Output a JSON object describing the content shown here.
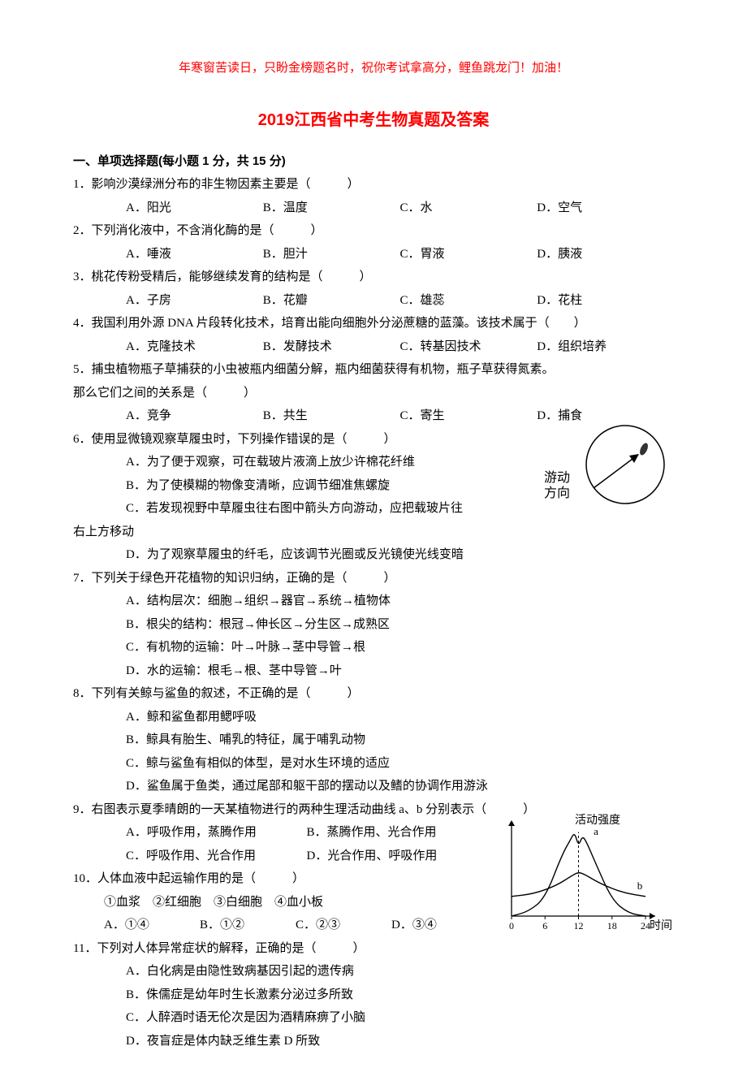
{
  "banner": "年寒窗苦读日，只盼金榜题名时，祝你考试拿高分，鲤鱼跳龙门！加油！",
  "title_year": "2019",
  "title_text": "江西省中考生物真题及答案",
  "section1": "一、单项选择题(每小题 1 分，共 15 分)",
  "q1": {
    "stem": "1．影响沙漠绿洲分布的非生物因素主要是（　　　）",
    "A": "A．阳光",
    "B": "B．温度",
    "C": "C．水",
    "D": "D．空气"
  },
  "q2": {
    "stem": "2．下列消化液中，不含消化酶的是（　　　）",
    "A": "A．唾液",
    "B": "B．胆汁",
    "C": "C．胃液",
    "D": "D．胰液"
  },
  "q3": {
    "stem": "3．桃花传粉受精后，能够继续发育的结构是（　　　）",
    "A": "A．子房",
    "B": "B．花瓣",
    "C": "C．雄蕊",
    "D": "D．花柱"
  },
  "q4": {
    "stem": "4．我国利用外源 DNA 片段转化技术，培育出能向细胞外分泌蔗糖的蓝藻。该技术属于（　　）",
    "A": "A．克隆技术",
    "B": "B．发酵技术",
    "C": "C．转基因技术",
    "D": "D．组织培养"
  },
  "q5": {
    "stem": "5．捕虫植物瓶子草捕获的小虫被瓶内细菌分解，瓶内细菌获得有机物，瓶子草获得氮素。",
    "cont": "那么它们之间的关系是（　　　）",
    "A": "A．竞争",
    "B": "B．共生",
    "C": "C．寄生",
    "D": "D．捕食"
  },
  "q6": {
    "stem": "6．使用显微镜观察草履虫时，下列操作错误的是（　　　）",
    "A": "A．为了便于观察，可在载玻片液滴上放少许棉花纤维",
    "B": "B．为了使模糊的物像变清晰，应调节细准焦螺旋",
    "C": "C．若发现视野中草履虫往右图中箭头方向游动，应把载玻片往",
    "Ccont": "右上方移动",
    "D": "D．为了观察草履虫的纤毛，应该调节光圈或反光镜使光线变暗",
    "figLabel1": "游动",
    "figLabel2": "方向"
  },
  "q7": {
    "stem": "7．下列关于绿色开花植物的知识归纳，正确的是（　　　）",
    "A": "A．结构层次：细胞→组织→器官→系统→植物体",
    "B": "B．根尖的结构：根冠→伸长区→分生区→成熟区",
    "C": "C．有机物的运输：叶→叶脉→茎中导管→根",
    "D": "D．水的运输：根毛→根、茎中导管→叶"
  },
  "q8": {
    "stem": "8．下列有关鲸与鲨鱼的叙述，不正确的是（　　　）",
    "A": "A．鲸和鲨鱼都用鳃呼吸",
    "B": "B．鲸具有胎生、哺乳的特征，属于哺乳动物",
    "C": "C．鲸与鲨鱼有相似的体型，是对水生环境的适应",
    "D": "D．鲨鱼属于鱼类，通过尾部和躯干部的摆动以及鳍的协调作用游泳"
  },
  "q9": {
    "stem": "9．右图表示夏季晴朗的一天某植物进行的两种生理活动曲线 a、b 分别表示（　　　）",
    "A": "A．呼吸作用，蒸腾作用",
    "B": "B．蒸腾作用、光合作用",
    "C": "C．呼吸作用、光合作用",
    "D": "D．光合作用、呼吸作用",
    "ylabel": "活动强度",
    "xlabel": "时间",
    "a": "a",
    "b": "b",
    "ticks": [
      "0",
      "6",
      "12",
      "18",
      "24"
    ],
    "chart": {
      "type": "line",
      "xlim": [
        0,
        24
      ],
      "ylim": [
        0,
        10
      ],
      "curve_a": [
        [
          0,
          0
        ],
        [
          3,
          0.5
        ],
        [
          6,
          2
        ],
        [
          9,
          6.8
        ],
        [
          10.5,
          8.5
        ],
        [
          11.3,
          9.4
        ],
        [
          12,
          7.8
        ],
        [
          12.7,
          9.0
        ],
        [
          13.5,
          8.2
        ],
        [
          15,
          6
        ],
        [
          18,
          1.8
        ],
        [
          21,
          0.3
        ],
        [
          24,
          0
        ]
      ],
      "curve_b": [
        [
          0,
          2.2
        ],
        [
          4,
          2.5
        ],
        [
          8,
          3.4
        ],
        [
          11,
          4.6
        ],
        [
          12,
          4.9
        ],
        [
          13,
          4.7
        ],
        [
          16,
          3.6
        ],
        [
          20,
          2.6
        ],
        [
          24,
          2.2
        ]
      ],
      "line_color": "#000000",
      "line_width": 1.4,
      "axis_color": "#000000",
      "dash_color": "#000000",
      "background_color": "#ffffff"
    }
  },
  "q10": {
    "stem": "10．人体血液中起运输作用的是（　　　）",
    "items": "①血浆　②红细胞　③白细胞　④血小板",
    "A": "A．①④",
    "B": "B．①②",
    "C": "C．②③",
    "D": "D．③④"
  },
  "q11": {
    "stem": "11．下列对人体异常症状的解释，正确的是（　　　）",
    "A": "A．白化病是由隐性致病基因引起的遗传病",
    "B": "B．侏儒症是幼年时生长激素分泌过多所致",
    "C": "C．人醉酒时语无伦次是因为酒精麻痹了小脑",
    "D": "D．夜盲症是体内缺乏维生素 D 所致"
  }
}
